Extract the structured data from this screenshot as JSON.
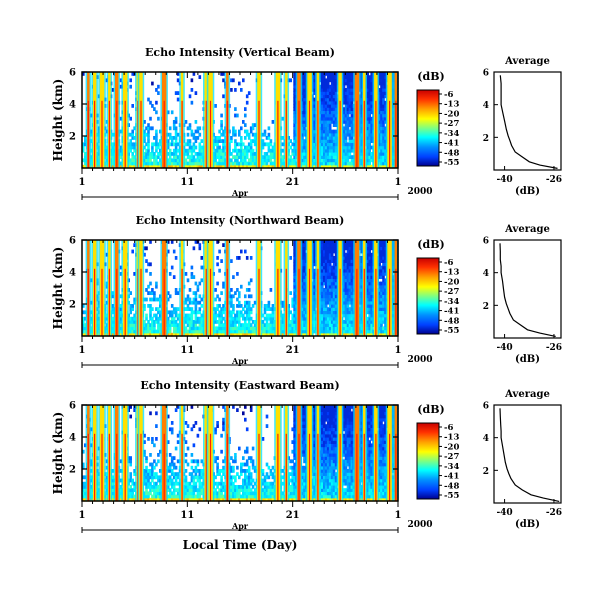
{
  "figure": {
    "xlabel": "Local Time (Day)",
    "month_label": "Apr",
    "year_label": "2000"
  },
  "chart_data": [
    {
      "type": "heatmap",
      "title": "Echo Intensity (Vertical Beam)",
      "ylabel": "Height (km)",
      "ylim": [
        0,
        6
      ],
      "yticks": [
        2,
        4,
        6
      ],
      "xticks": [
        "1",
        "11",
        "21",
        "1"
      ],
      "colorbar_label": "(dB)",
      "colorbar_ticks": [
        -6,
        -13,
        -20,
        -27,
        -34,
        -41,
        -48,
        -55
      ],
      "rain_days": [
        1.6,
        2.2,
        2.9,
        3.6,
        4.3,
        5.1,
        6.3,
        6.6,
        8.8,
        10.5,
        12.8,
        13.2,
        14.8,
        17.8,
        19.6,
        20.4,
        21.6,
        22.6,
        23.4,
        25.5,
        27.1,
        27.8,
        28.9,
        30.2,
        30.8
      ]
    },
    {
      "type": "heatmap",
      "title": "Echo Intensity (Northward Beam)",
      "ylabel": "Height (km)",
      "ylim": [
        0,
        6
      ],
      "yticks": [
        2,
        4,
        6
      ],
      "xticks": [
        "1",
        "11",
        "21",
        "1"
      ],
      "colorbar_label": "(dB)",
      "colorbar_ticks": [
        -6,
        -13,
        -20,
        -27,
        -34,
        -41,
        -48,
        -55
      ],
      "rain_days": [
        1.6,
        2.2,
        2.9,
        3.6,
        4.3,
        5.1,
        6.3,
        6.6,
        8.8,
        10.5,
        12.8,
        13.2,
        14.8,
        17.8,
        19.6,
        20.4,
        21.6,
        22.6,
        23.4,
        25.5,
        27.1,
        27.8,
        28.9,
        30.2,
        30.8
      ]
    },
    {
      "type": "heatmap",
      "title": "Echo Intensity (Eastward Beam)",
      "ylabel": "Height (km)",
      "ylim": [
        0,
        6
      ],
      "yticks": [
        2,
        4,
        6
      ],
      "xticks": [
        "1",
        "11",
        "21",
        "1"
      ],
      "colorbar_label": "(dB)",
      "colorbar_ticks": [
        -6,
        -13,
        -20,
        -27,
        -34,
        -41,
        -48,
        -55
      ],
      "rain_days": [
        1.6,
        2.2,
        2.9,
        3.6,
        4.3,
        5.1,
        6.3,
        6.6,
        8.8,
        10.5,
        12.8,
        13.2,
        14.8,
        17.8,
        19.6,
        20.4,
        21.6,
        22.6,
        23.4,
        25.5,
        27.1,
        27.8,
        28.9,
        30.2,
        30.8
      ]
    },
    {
      "type": "line",
      "title": "Average",
      "xlabel": "(dB)",
      "xlim": [
        -43,
        -24
      ],
      "xticks": [
        -40,
        -26
      ],
      "ylim": [
        0,
        6
      ],
      "yticks": [
        2,
        4,
        6
      ],
      "x": [
        -25,
        -30,
        -33,
        -35,
        -37,
        -38,
        -38.5,
        -39,
        -39.5,
        -40,
        -40.5,
        -41,
        -41,
        -41,
        -41,
        -41.2
      ],
      "y": [
        0.1,
        0.3,
        0.5,
        0.8,
        1.1,
        1.5,
        1.8,
        2.1,
        2.5,
        3.0,
        3.5,
        4.0,
        4.4,
        4.8,
        5.3,
        5.8
      ]
    },
    {
      "type": "line",
      "title": "Average",
      "xlabel": "(dB)",
      "xlim": [
        -43,
        -24
      ],
      "xticks": [
        -40,
        -26
      ],
      "ylim": [
        0,
        6
      ],
      "yticks": [
        2,
        4,
        6
      ],
      "x": [
        -25.5,
        -30,
        -33.5,
        -35.5,
        -37.5,
        -38.5,
        -39,
        -39.5,
        -40,
        -40.3,
        -40.6,
        -41,
        -41,
        -41.2,
        -41.2,
        -41.3
      ],
      "y": [
        0.1,
        0.3,
        0.5,
        0.8,
        1.1,
        1.5,
        1.8,
        2.1,
        2.5,
        3.0,
        3.5,
        4.0,
        4.4,
        4.8,
        5.3,
        5.8
      ]
    },
    {
      "type": "line",
      "title": "Average",
      "xlabel": "(dB)",
      "xlim": [
        -43,
        -24
      ],
      "xticks": [
        -40,
        -26
      ],
      "ylim": [
        0,
        6
      ],
      "yticks": [
        2,
        4,
        6
      ],
      "x": [
        -24.5,
        -29,
        -32.5,
        -35,
        -37,
        -38.2,
        -38.8,
        -39.3,
        -39.8,
        -40.2,
        -40.6,
        -41,
        -41,
        -41.1,
        -41.2,
        -41.3
      ],
      "y": [
        0.1,
        0.3,
        0.5,
        0.8,
        1.1,
        1.5,
        1.8,
        2.1,
        2.5,
        3.0,
        3.5,
        4.0,
        4.4,
        4.8,
        5.3,
        5.8
      ]
    }
  ]
}
